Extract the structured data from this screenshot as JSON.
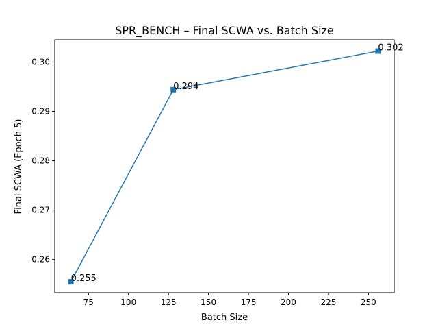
{
  "chart_data": {
    "type": "line",
    "title": "SPR_BENCH – Final SCWA vs. Batch Size",
    "xlabel": "Batch Size",
    "ylabel": "Final SCWA (Epoch 5)",
    "xlim": [
      53.9,
      266.1
    ],
    "ylim": [
      0.2533,
      0.3045
    ],
    "x_ticks": [
      75,
      100,
      125,
      150,
      175,
      200,
      225,
      250
    ],
    "y_ticks": [
      0.26,
      0.27,
      0.28,
      0.29,
      0.3
    ],
    "x_tick_labels": [
      "75",
      "100",
      "125",
      "150",
      "175",
      "200",
      "225",
      "250"
    ],
    "y_tick_labels": [
      "0.26",
      "0.27",
      "0.28",
      "0.29",
      "0.30"
    ],
    "grid": false,
    "series": [
      {
        "x": [
          64,
          128,
          256
        ],
        "y": [
          0.2555,
          0.2944,
          0.3022
        ],
        "labels": [
          "0.255",
          "0.294",
          "0.302"
        ],
        "color": "#1f77b4",
        "marker": "square"
      }
    ]
  }
}
